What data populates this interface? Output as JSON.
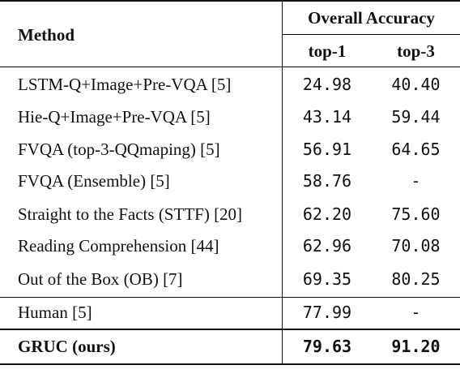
{
  "header": {
    "method": "Method",
    "group": "Overall Accuracy",
    "col1": "top-1",
    "col2": "top-3"
  },
  "rows": [
    {
      "method": "LSTM-Q+Image+Pre-VQA [5]",
      "top1": "24.98",
      "top3": "40.40"
    },
    {
      "method": "Hie-Q+Image+Pre-VQA [5]",
      "top1": "43.14",
      "top3": "59.44"
    },
    {
      "method": "FVQA (top-3-QQmaping) [5]",
      "top1": "56.91",
      "top3": "64.65"
    },
    {
      "method": "FVQA (Ensemble) [5]",
      "top1": "58.76",
      "top3": "-"
    },
    {
      "method": "Straight to the Facts (STTF) [20]",
      "top1": "62.20",
      "top3": "75.60"
    },
    {
      "method": "Reading Comprehension [44]",
      "top1": "62.96",
      "top3": "70.08"
    },
    {
      "method": "Out of the Box (OB) [7]",
      "top1": "69.35",
      "top3": "80.25"
    }
  ],
  "human": {
    "method": "Human [5]",
    "top1": "77.99",
    "top3": "-"
  },
  "ours": {
    "method": "GRUC (ours)",
    "top1": "79.63",
    "top3": "91.20"
  }
}
